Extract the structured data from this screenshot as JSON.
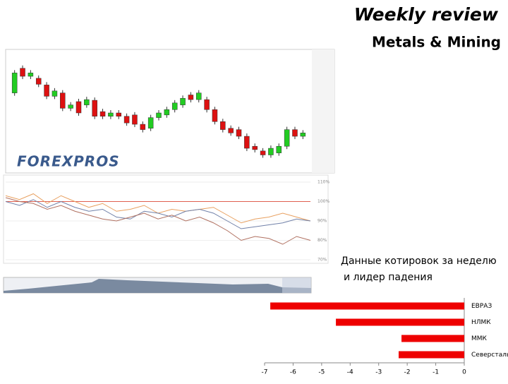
{
  "title": "Weekly review",
  "subtitle": "Metals & Mining",
  "caption": [
    "Данные котировок за неделю",
    "и лидер падения"
  ],
  "chart_data": [
    {
      "type": "candlestick",
      "annotation": "FOREXPROS",
      "ylim": [
        0,
        180
      ],
      "up_color": "#22cc22",
      "down_color": "#dd1111",
      "open": [
        120,
        157,
        145,
        142,
        132,
        115,
        120,
        97,
        107,
        102,
        109,
        92,
        85,
        90,
        85,
        87,
        73,
        67,
        83,
        87,
        95,
        102,
        117,
        110,
        110,
        95,
        77,
        67,
        65,
        55,
        40,
        33,
        27,
        30,
        40,
        65,
        55
      ],
      "close": [
        150,
        145,
        150,
        133,
        115,
        123,
        97,
        102,
        90,
        110,
        85,
        85,
        90,
        85,
        75,
        73,
        65,
        83,
        90,
        95,
        105,
        112,
        110,
        120,
        95,
        77,
        65,
        60,
        55,
        37,
        35,
        27,
        37,
        40,
        65,
        55,
        60
      ]
    },
    {
      "type": "line",
      "ylim": [
        70,
        110
      ],
      "hline": 100,
      "hline_color": "#e06050",
      "yticks": [
        {
          "value": 110,
          "label": "110%"
        },
        {
          "value": 100,
          "label": "100%"
        },
        {
          "value": 90,
          "label": "90%"
        },
        {
          "value": 80,
          "label": "80%"
        },
        {
          "value": 70,
          "label": "70%"
        }
      ],
      "series": [
        {
          "color": "#e8a060",
          "values": [
            103,
            101,
            104,
            99,
            103,
            100,
            97,
            99,
            95,
            96,
            98,
            94,
            96,
            95,
            96,
            97,
            93,
            89,
            91,
            92,
            94,
            92,
            90
          ]
        },
        {
          "color": "#7080a8",
          "values": [
            100,
            98,
            101,
            97,
            100,
            97,
            95,
            96,
            92,
            91,
            95,
            94,
            92,
            95,
            96,
            94,
            90,
            86,
            87,
            88,
            89,
            91,
            90
          ]
        },
        {
          "color": "#b07060",
          "values": [
            102,
            100,
            99,
            96,
            98,
            95,
            93,
            91,
            90,
            92,
            94,
            91,
            93,
            90,
            92,
            89,
            85,
            80,
            82,
            81,
            78,
            82,
            80
          ]
        }
      ]
    },
    {
      "type": "hbar",
      "categories": [
        "ЕВРАЗ",
        "НЛМК",
        "ММК",
        "Северсталь"
      ],
      "values": [
        -6.8,
        -4.5,
        -2.2,
        -2.3
      ],
      "color": "#ee0000",
      "xlim": [
        -7,
        0
      ],
      "xticks": [
        -7,
        -6,
        -5,
        -4,
        -3,
        -2,
        -1,
        0
      ]
    }
  ]
}
